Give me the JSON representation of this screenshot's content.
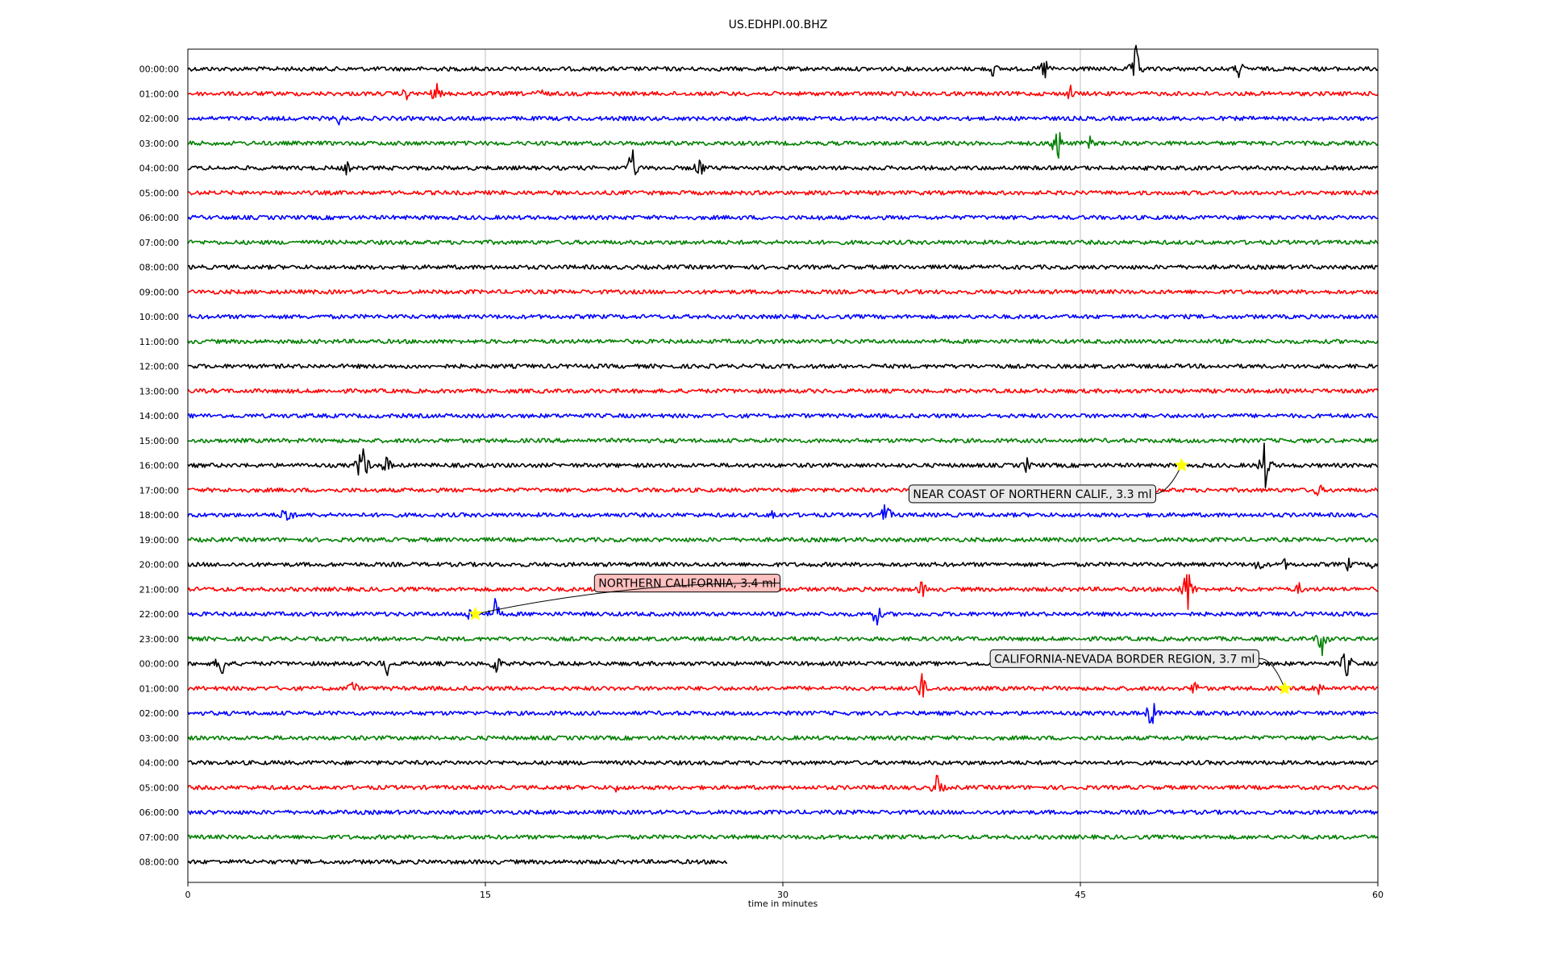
{
  "chart_data": {
    "type": "line",
    "title": "US.EDHPI.00.BHZ",
    "xlabel": "time in minutes",
    "ylabel": "",
    "xlim": [
      0,
      60
    ],
    "x_ticks": [
      "0",
      "15",
      "30",
      "45",
      "60"
    ],
    "grid": "vertical lines at 15, 30, 45",
    "trace_colors": [
      "#000000",
      "#ff0000",
      "#0000ff",
      "#008000"
    ],
    "row_labels": [
      "00:00:00",
      "01:00:00",
      "02:00:00",
      "03:00:00",
      "04:00:00",
      "05:00:00",
      "06:00:00",
      "07:00:00",
      "08:00:00",
      "09:00:00",
      "10:00:00",
      "11:00:00",
      "12:00:00",
      "13:00:00",
      "14:00:00",
      "15:00:00",
      "16:00:00",
      "17:00:00",
      "18:00:00",
      "19:00:00",
      "20:00:00",
      "21:00:00",
      "22:00:00",
      "23:00:00",
      "00:00:00",
      "01:00:00",
      "02:00:00",
      "03:00:00",
      "04:00:00",
      "05:00:00",
      "06:00:00",
      "07:00:00",
      "08:00:00"
    ],
    "last_row_end_minute": 27.2,
    "events": [
      {
        "row": 0,
        "minute": 40.6,
        "amp": 0.35
      },
      {
        "row": 0,
        "minute": 43.2,
        "amp": 0.55
      },
      {
        "row": 0,
        "minute": 47.8,
        "amp": 0.9
      },
      {
        "row": 0,
        "minute": 53.0,
        "amp": 0.4
      },
      {
        "row": 1,
        "minute": 11.0,
        "amp": 0.3
      },
      {
        "row": 1,
        "minute": 12.5,
        "amp": 0.5
      },
      {
        "row": 1,
        "minute": 17.8,
        "amp": 0.3
      },
      {
        "row": 1,
        "minute": 44.5,
        "amp": 0.35
      },
      {
        "row": 2,
        "minute": 7.6,
        "amp": 0.3
      },
      {
        "row": 3,
        "minute": 43.8,
        "amp": 1.0
      },
      {
        "row": 3,
        "minute": 45.5,
        "amp": 0.3
      },
      {
        "row": 4,
        "minute": 8.0,
        "amp": 0.3
      },
      {
        "row": 4,
        "minute": 22.4,
        "amp": 0.8
      },
      {
        "row": 4,
        "minute": 25.8,
        "amp": 0.5
      },
      {
        "row": 6,
        "minute": 31.8,
        "amp": 0.2
      },
      {
        "row": 16,
        "minute": 8.8,
        "amp": 1.0
      },
      {
        "row": 16,
        "minute": 10.0,
        "amp": 0.45
      },
      {
        "row": 16,
        "minute": 42.3,
        "amp": 0.35
      },
      {
        "row": 16,
        "minute": 54.3,
        "amp": 1.0
      },
      {
        "row": 17,
        "minute": 57.0,
        "amp": 0.35
      },
      {
        "row": 18,
        "minute": 5.0,
        "amp": 0.6
      },
      {
        "row": 18,
        "minute": 29.5,
        "amp": 0.3
      },
      {
        "row": 18,
        "minute": 35.2,
        "amp": 0.6
      },
      {
        "row": 20,
        "minute": 54.0,
        "amp": 0.35
      },
      {
        "row": 20,
        "minute": 55.3,
        "amp": 0.25
      },
      {
        "row": 20,
        "minute": 58.5,
        "amp": 0.3
      },
      {
        "row": 20,
        "minute": 59.8,
        "amp": 0.3
      },
      {
        "row": 21,
        "minute": 37.0,
        "amp": 0.4
      },
      {
        "row": 21,
        "minute": 50.4,
        "amp": 1.0
      },
      {
        "row": 21,
        "minute": 56.0,
        "amp": 0.3
      },
      {
        "row": 22,
        "minute": 14.2,
        "amp": 0.35
      },
      {
        "row": 22,
        "minute": 15.5,
        "amp": 0.6
      },
      {
        "row": 22,
        "minute": 34.7,
        "amp": 0.55
      },
      {
        "row": 23,
        "minute": 57.2,
        "amp": 0.7
      },
      {
        "row": 24,
        "minute": 1.7,
        "amp": 0.7
      },
      {
        "row": 24,
        "minute": 10.0,
        "amp": 0.6
      },
      {
        "row": 24,
        "minute": 15.5,
        "amp": 0.55
      },
      {
        "row": 24,
        "minute": 58.4,
        "amp": 0.7
      },
      {
        "row": 25,
        "minute": 8.3,
        "amp": 0.45
      },
      {
        "row": 25,
        "minute": 37.0,
        "amp": 0.6
      },
      {
        "row": 25,
        "minute": 50.8,
        "amp": 0.4
      },
      {
        "row": 25,
        "minute": 57.0,
        "amp": 0.5
      },
      {
        "row": 26,
        "minute": 48.6,
        "amp": 0.7
      },
      {
        "row": 29,
        "minute": 21.6,
        "amp": 0.2
      },
      {
        "row": 29,
        "minute": 37.8,
        "amp": 0.6
      }
    ],
    "annotations": [
      {
        "text": "NEAR COAST OF NORTHERN CALIF., 3.3 ml",
        "row": 16,
        "minute": 50.1,
        "label_row": 17.15,
        "label_minute": 48.8,
        "align": "end"
      },
      {
        "text": "NORTHERN CALIFORNIA, 3.4 ml",
        "row": 22,
        "minute": 14.5,
        "label_row": 20.75,
        "label_minute": 20.5,
        "align": "start"
      },
      {
        "text": "CALIFORNIA-NEVADA BORDER REGION, 3.7 ml",
        "row": 25,
        "minute": 55.3,
        "label_row": 23.8,
        "label_minute": 54.0,
        "align": "end"
      }
    ],
    "marker_color": "#ffff00",
    "annotation_box_colors": [
      "#e8e8e8",
      "#ffc0c0",
      "#e8e8e8"
    ]
  }
}
